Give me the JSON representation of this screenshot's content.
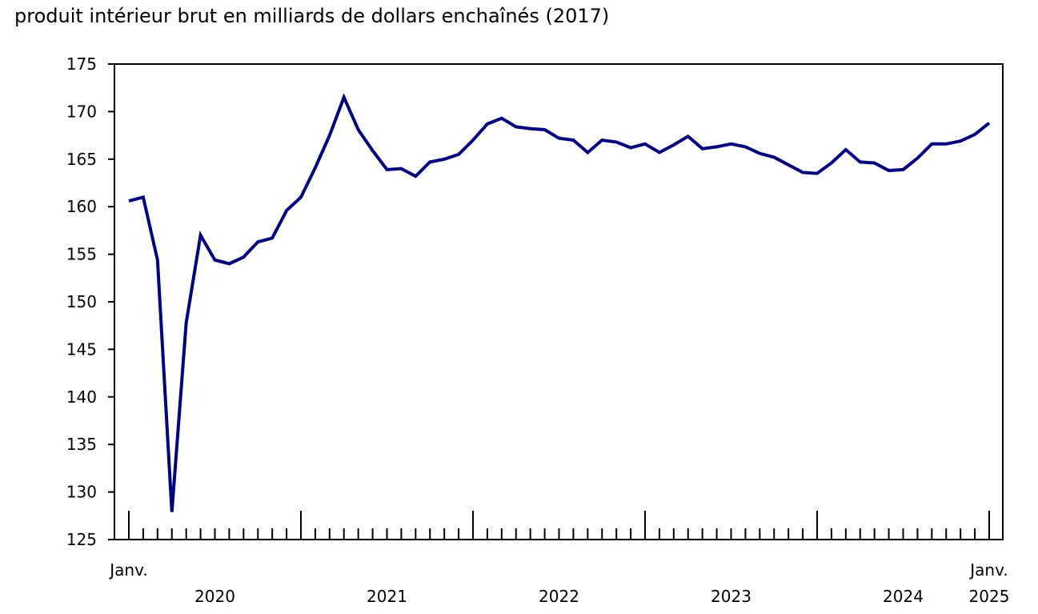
{
  "chart_data": {
    "type": "line",
    "title": "produit intérieur brut en milliards de dollars enchaînés (2017)",
    "xlabel": "",
    "ylabel": "",
    "ylim": [
      125,
      175
    ],
    "yticks": [
      125,
      130,
      135,
      140,
      145,
      150,
      155,
      160,
      165,
      170,
      175
    ],
    "grid": false,
    "line_color": "#000080",
    "x_start_label": "Janv.",
    "x_end_label": "Janv.",
    "year_labels": [
      "2020",
      "2021",
      "2022",
      "2023",
      "2024",
      "2025"
    ],
    "x_range": [
      "2020-01",
      "2025-01"
    ],
    "series": [
      {
        "values": [
          160.6,
          161.0,
          154.4,
          127.9,
          147.8,
          157.0,
          154.4,
          154.0,
          154.7,
          156.3,
          156.7,
          159.6,
          161.0,
          164.1,
          167.5,
          171.5,
          168.1,
          165.9,
          163.9,
          164.0,
          163.2,
          164.7,
          165.0,
          165.5,
          167.0,
          168.7,
          169.3,
          168.4,
          168.2,
          168.1,
          167.2,
          167.0,
          165.7,
          167.0,
          166.8,
          166.2,
          166.6,
          165.7,
          166.5,
          167.4,
          166.1,
          166.3,
          166.6,
          166.3,
          165.6,
          165.2,
          164.4,
          163.6,
          163.5,
          164.6,
          166.0,
          164.7,
          164.6,
          163.8,
          163.9,
          165.1,
          166.6,
          166.6,
          166.9,
          167.6,
          168.8
        ]
      }
    ]
  }
}
